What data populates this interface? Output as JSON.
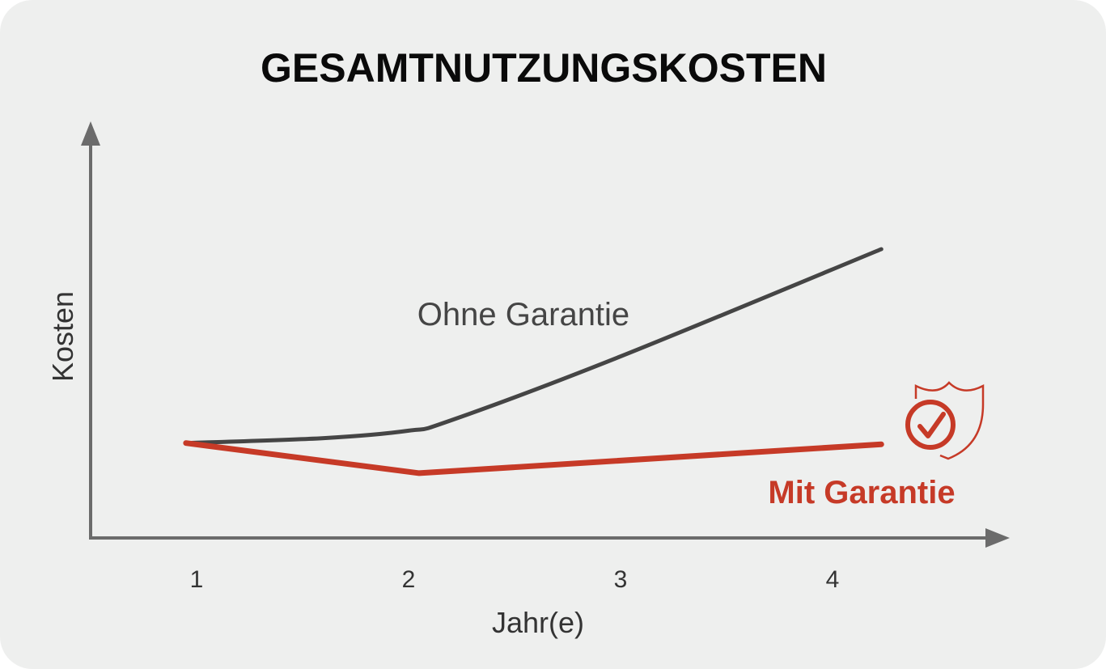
{
  "chart_data": {
    "type": "line",
    "title": "GESAMTNUTZUNGSKOSTEN",
    "xlabel": "Jahr(e)",
    "ylabel": "Kosten",
    "x_ticks": [
      "1",
      "2",
      "3",
      "4"
    ],
    "xlim": [
      0.5,
      5.0
    ],
    "ylim": [
      0,
      100
    ],
    "y_ticks_shown": false,
    "grid": false,
    "legend": "inline labels",
    "series": [
      {
        "name": "Ohne Garantie",
        "color": "#454545",
        "points": [
          [
            0.95,
            23
          ],
          [
            1.6,
            24.2
          ],
          [
            2.0,
            26
          ],
          [
            2.2,
            28.5
          ],
          [
            3.0,
            44
          ],
          [
            4.23,
            70
          ]
        ]
      },
      {
        "name": "Mit Garantie",
        "color": "#c63a27",
        "points": [
          [
            0.95,
            23
          ],
          [
            2.05,
            15.7
          ],
          [
            4.23,
            22.7
          ]
        ]
      }
    ],
    "annotations": [
      {
        "icon": "shield-check-icon",
        "color": "#c63a27",
        "near": "Mit Garantie"
      }
    ]
  },
  "colors": {
    "background": "#eeefee",
    "axis": "#6b6b6b"
  }
}
